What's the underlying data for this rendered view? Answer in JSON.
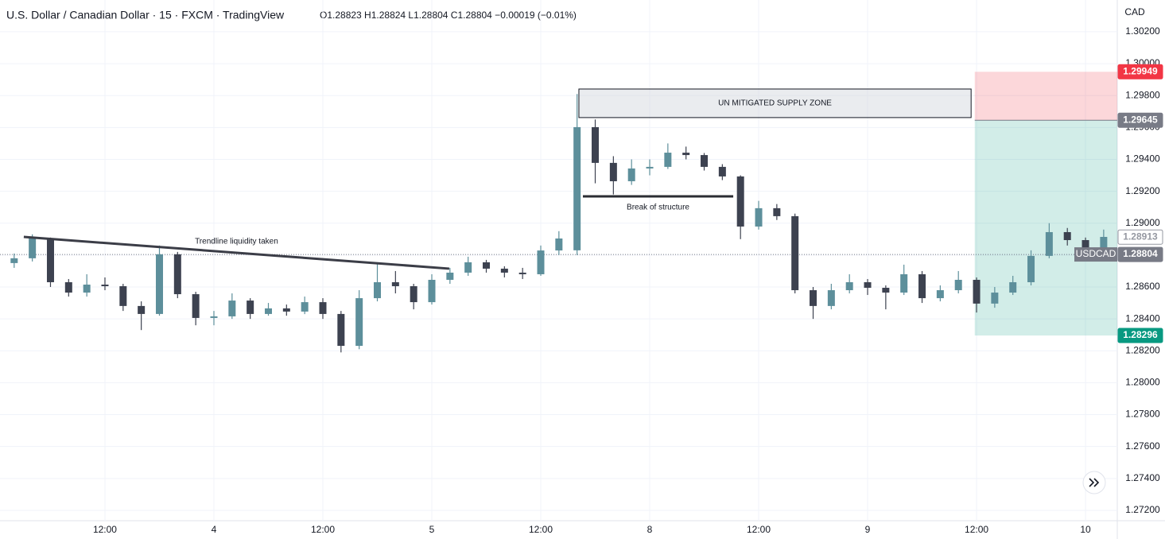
{
  "chart_data": {
    "type": "candlestick",
    "title": "U.S. Dollar / Canadian Dollar · 15 · FXCM · TradingView",
    "ohlc_legend": "O1.28823 H1.28824 L1.28804 C1.28804 −0.00019 (−0.01%)",
    "y_unit": "CAD",
    "up_color": "#5d8f9b",
    "down_color": "#3d4250",
    "grid": true,
    "x": [
      1,
      2,
      3,
      4,
      5,
      6,
      7,
      8,
      9,
      10,
      11,
      12,
      13,
      14,
      15,
      16,
      17,
      18,
      19,
      20,
      21,
      22,
      23,
      24,
      25,
      26,
      27,
      28,
      29,
      30,
      31,
      32,
      33,
      34,
      35,
      36,
      37,
      38,
      39,
      40,
      41,
      42,
      43,
      44,
      45,
      46,
      47,
      48,
      49,
      50,
      51,
      52,
      53,
      54,
      55,
      56,
      57,
      58,
      59,
      60,
      61
    ],
    "open": [
      1.2875,
      1.2878,
      1.28904,
      1.2863,
      1.28565,
      1.28615,
      1.28605,
      1.28481,
      1.28431,
      1.28805,
      1.28555,
      1.28406,
      1.28416,
      1.28515,
      1.28431,
      1.28466,
      1.28446,
      1.28505,
      1.28431,
      1.28231,
      1.2853,
      1.2863,
      1.28605,
      1.28505,
      1.28645,
      1.2869,
      1.28755,
      1.28715,
      1.2869,
      1.2868,
      1.28829,
      1.2883,
      1.29602,
      1.29378,
      1.29263,
      1.29343,
      1.29353,
      1.29442,
      1.29427,
      1.29353,
      1.29293,
      1.28979,
      1.29094,
      1.29044,
      1.2858,
      1.28481,
      1.2858,
      1.2863,
      1.28595,
      1.28565,
      1.2868,
      1.2853,
      1.2858,
      1.28645,
      1.28496,
      1.28565,
      1.2863,
      1.28795,
      1.28944,
      1.28894,
      1.28844
    ],
    "high": [
      1.2881,
      1.2893,
      1.2891,
      1.2865,
      1.2868,
      1.2866,
      1.2862,
      1.2851,
      1.2886,
      1.2882,
      1.2857,
      1.2845,
      1.2856,
      1.2853,
      1.285,
      1.2849,
      1.2854,
      1.2853,
      1.2845,
      1.2858,
      1.2875,
      1.287,
      1.2862,
      1.2868,
      1.2872,
      1.2879,
      1.2877,
      1.2873,
      1.2872,
      1.2886,
      1.2895,
      1.2981,
      1.2965,
      1.2942,
      1.294,
      1.294,
      1.295,
      1.2948,
      1.2944,
      1.2937,
      1.293,
      1.2914,
      1.2912,
      1.2906,
      1.286,
      1.2862,
      1.2868,
      1.2865,
      1.2861,
      1.2874,
      1.287,
      1.2861,
      1.287,
      1.2866,
      1.286,
      1.2867,
      1.2883,
      1.29,
      1.2897,
      1.2891,
      1.2896
    ],
    "low": [
      1.2872,
      1.2876,
      1.286,
      1.2854,
      1.2854,
      1.2858,
      1.2845,
      1.2833,
      1.2842,
      1.2853,
      1.2836,
      1.2836,
      1.284,
      1.284,
      1.2842,
      1.2842,
      1.2843,
      1.284,
      1.2819,
      1.2821,
      1.2851,
      1.2856,
      1.2846,
      1.2849,
      1.2862,
      1.2867,
      1.2869,
      1.2866,
      1.2865,
      1.2867,
      1.288,
      1.288,
      1.2925,
      1.2918,
      1.2924,
      1.293,
      1.2934,
      1.294,
      1.2933,
      1.2927,
      1.289,
      1.2896,
      1.2902,
      1.2856,
      1.284,
      1.2846,
      1.2856,
      1.2855,
      1.2846,
      1.2855,
      1.285,
      1.2851,
      1.2856,
      1.2844,
      1.2847,
      1.2855,
      1.2861,
      1.2878,
      1.2886,
      1.288,
      1.2883
    ],
    "close": [
      1.2878,
      1.28904,
      1.2863,
      1.28565,
      1.28615,
      1.28605,
      1.28481,
      1.28431,
      1.28805,
      1.28555,
      1.28406,
      1.28416,
      1.28515,
      1.28431,
      1.28466,
      1.28446,
      1.28505,
      1.28431,
      1.28231,
      1.2853,
      1.2863,
      1.28605,
      1.28505,
      1.28645,
      1.2869,
      1.28755,
      1.28715,
      1.2869,
      1.2868,
      1.28829,
      1.28904,
      1.29602,
      1.29378,
      1.29263,
      1.29343,
      1.29353,
      1.29442,
      1.29427,
      1.29353,
      1.29293,
      1.28979,
      1.29094,
      1.29044,
      1.2858,
      1.28481,
      1.2858,
      1.2863,
      1.28595,
      1.28565,
      1.2868,
      1.2853,
      1.2858,
      1.28645,
      1.28496,
      1.28565,
      1.2863,
      1.28795,
      1.28944,
      1.28894,
      1.28844,
      1.28914
    ],
    "xlim": [
      0.22,
      61.75
    ],
    "xticks": [
      {
        "value": 6,
        "label": "12:00"
      },
      {
        "value": 12,
        "label": "4"
      },
      {
        "value": 18,
        "label": "12:00"
      },
      {
        "value": 24,
        "label": "5"
      },
      {
        "value": 30,
        "label": "12:00"
      },
      {
        "value": 36,
        "label": "8"
      },
      {
        "value": 42,
        "label": "12:00"
      },
      {
        "value": 48,
        "label": "9"
      },
      {
        "value": 54,
        "label": "12:00"
      },
      {
        "value": 60,
        "label": "10"
      }
    ],
    "ylim": [
      1.27135,
      1.30399
    ],
    "yticks": [
      {
        "value": 1.272,
        "label": "1.27200"
      },
      {
        "value": 1.274,
        "label": "1.27400"
      },
      {
        "value": 1.276,
        "label": "1.27600"
      },
      {
        "value": 1.278,
        "label": "1.27800"
      },
      {
        "value": 1.28,
        "label": "1.28000"
      },
      {
        "value": 1.282,
        "label": "1.28200"
      },
      {
        "value": 1.284,
        "label": "1.28400"
      },
      {
        "value": 1.286,
        "label": "1.28600"
      },
      {
        "value": 1.288,
        "label": "1.28800"
      },
      {
        "value": 1.29,
        "label": "1.29000"
      },
      {
        "value": 1.292,
        "label": "1.29200"
      },
      {
        "value": 1.294,
        "label": "1.29400"
      },
      {
        "value": 1.296,
        "label": "1.29600"
      },
      {
        "value": 1.298,
        "label": "1.29800"
      },
      {
        "value": 1.3,
        "label": "1.30000"
      },
      {
        "value": 1.302,
        "label": "1.30200"
      }
    ],
    "zones": [
      {
        "label": "UN MITIGATED SUPPLY ZONE",
        "x": [
          32.1,
          53.7
        ],
        "y": [
          1.29662,
          1.29841
        ]
      }
    ],
    "lines": [
      {
        "label": "Trendline liquidity taken",
        "x": [
          1.53,
          24.96
        ],
        "y": [
          1.28914,
          1.28715
        ],
        "color": "#3b3d47"
      },
      {
        "label": "Break of structure",
        "x": [
          32.32,
          40.6
        ],
        "y": [
          1.29168,
          1.29168
        ],
        "color": "#2a2c33"
      }
    ],
    "position": {
      "x_start": 53.9,
      "entry": 1.29645,
      "stop": 1.29949,
      "target": 1.28296,
      "entry_color": "#787b86",
      "stop_color": "#f23645",
      "target_color": "#089981"
    },
    "last_price": {
      "value": 1.28804,
      "symbol": "USDCAD",
      "color": "#787b86"
    },
    "marker_price": {
      "value": 1.28913,
      "color": "#9598a1"
    }
  }
}
